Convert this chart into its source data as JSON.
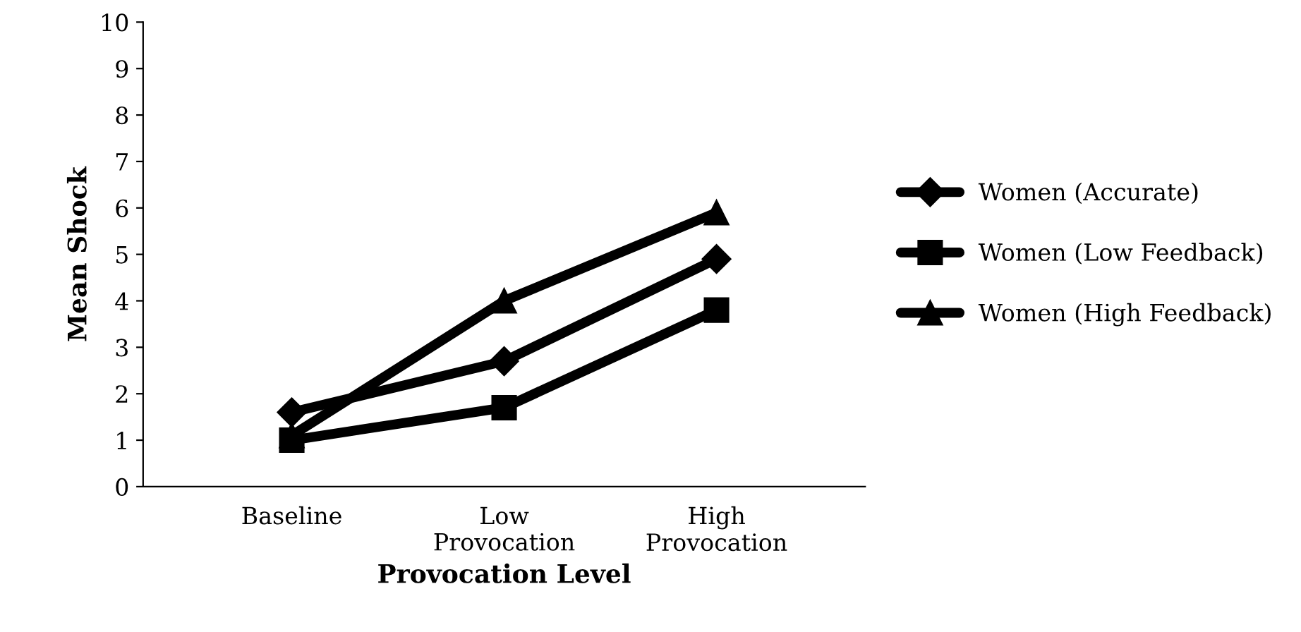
{
  "chart_data": {
    "type": "line",
    "xlabel": "Provocation Level",
    "ylabel": "Mean Shock",
    "categories": [
      "Baseline",
      "Low\nProvocation",
      "High\nProvocation"
    ],
    "series": [
      {
        "name": "Women (Accurate)",
        "color": "#000000",
        "marker": "diamond",
        "values": [
          1.6,
          2.7,
          4.9
        ]
      },
      {
        "name": "Women (Low Feedback)",
        "color": "#000000",
        "marker": "square",
        "values": [
          1.0,
          1.7,
          3.8
        ]
      },
      {
        "name": "Women (High Feedback)",
        "color": "#000000",
        "marker": "triangle",
        "values": [
          1.1,
          4.0,
          5.9
        ]
      }
    ],
    "ylim": [
      0,
      10
    ],
    "yticks": [
      0,
      1,
      2,
      3,
      4,
      5,
      6,
      7,
      8,
      9,
      10
    ],
    "grid": false,
    "legend": "right",
    "line_style": "solid"
  }
}
